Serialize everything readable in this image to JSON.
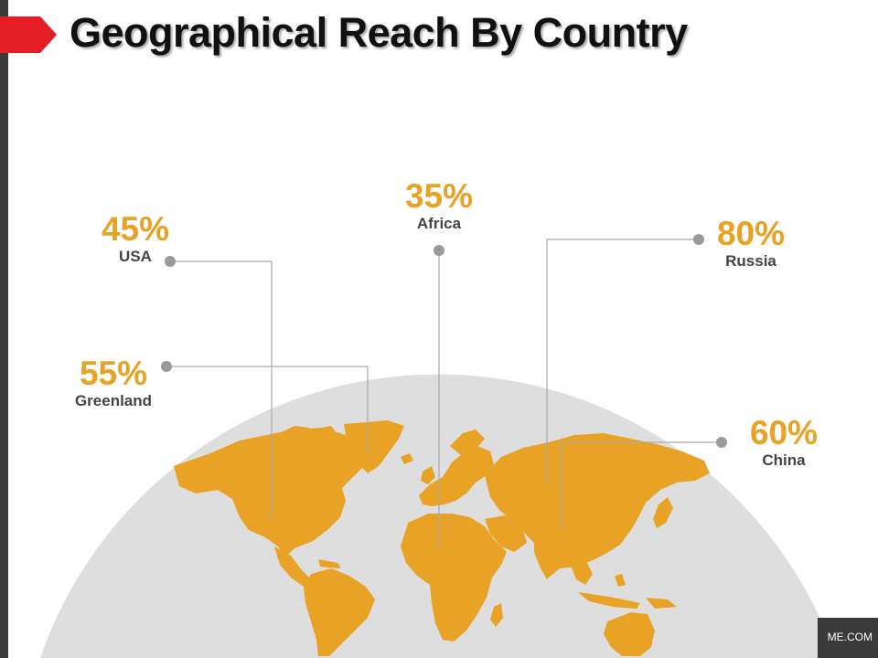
{
  "slide": {
    "title": "Geographical Reach By Country",
    "footer_text": "ME.COM"
  },
  "colors": {
    "accent": "#e8a326",
    "title_arrow": "#e31e25",
    "globe": "#dedede",
    "leader_line": "#aaaaaa",
    "marker": "#9a9a9a",
    "left_bar": "#3a3a3a"
  },
  "countries": [
    {
      "name": "USA",
      "percent": "45%"
    },
    {
      "name": "Africa",
      "percent": "35%"
    },
    {
      "name": "Russia",
      "percent": "80%"
    },
    {
      "name": "Greenland",
      "percent": "55%"
    },
    {
      "name": "China",
      "percent": "60%"
    }
  ]
}
